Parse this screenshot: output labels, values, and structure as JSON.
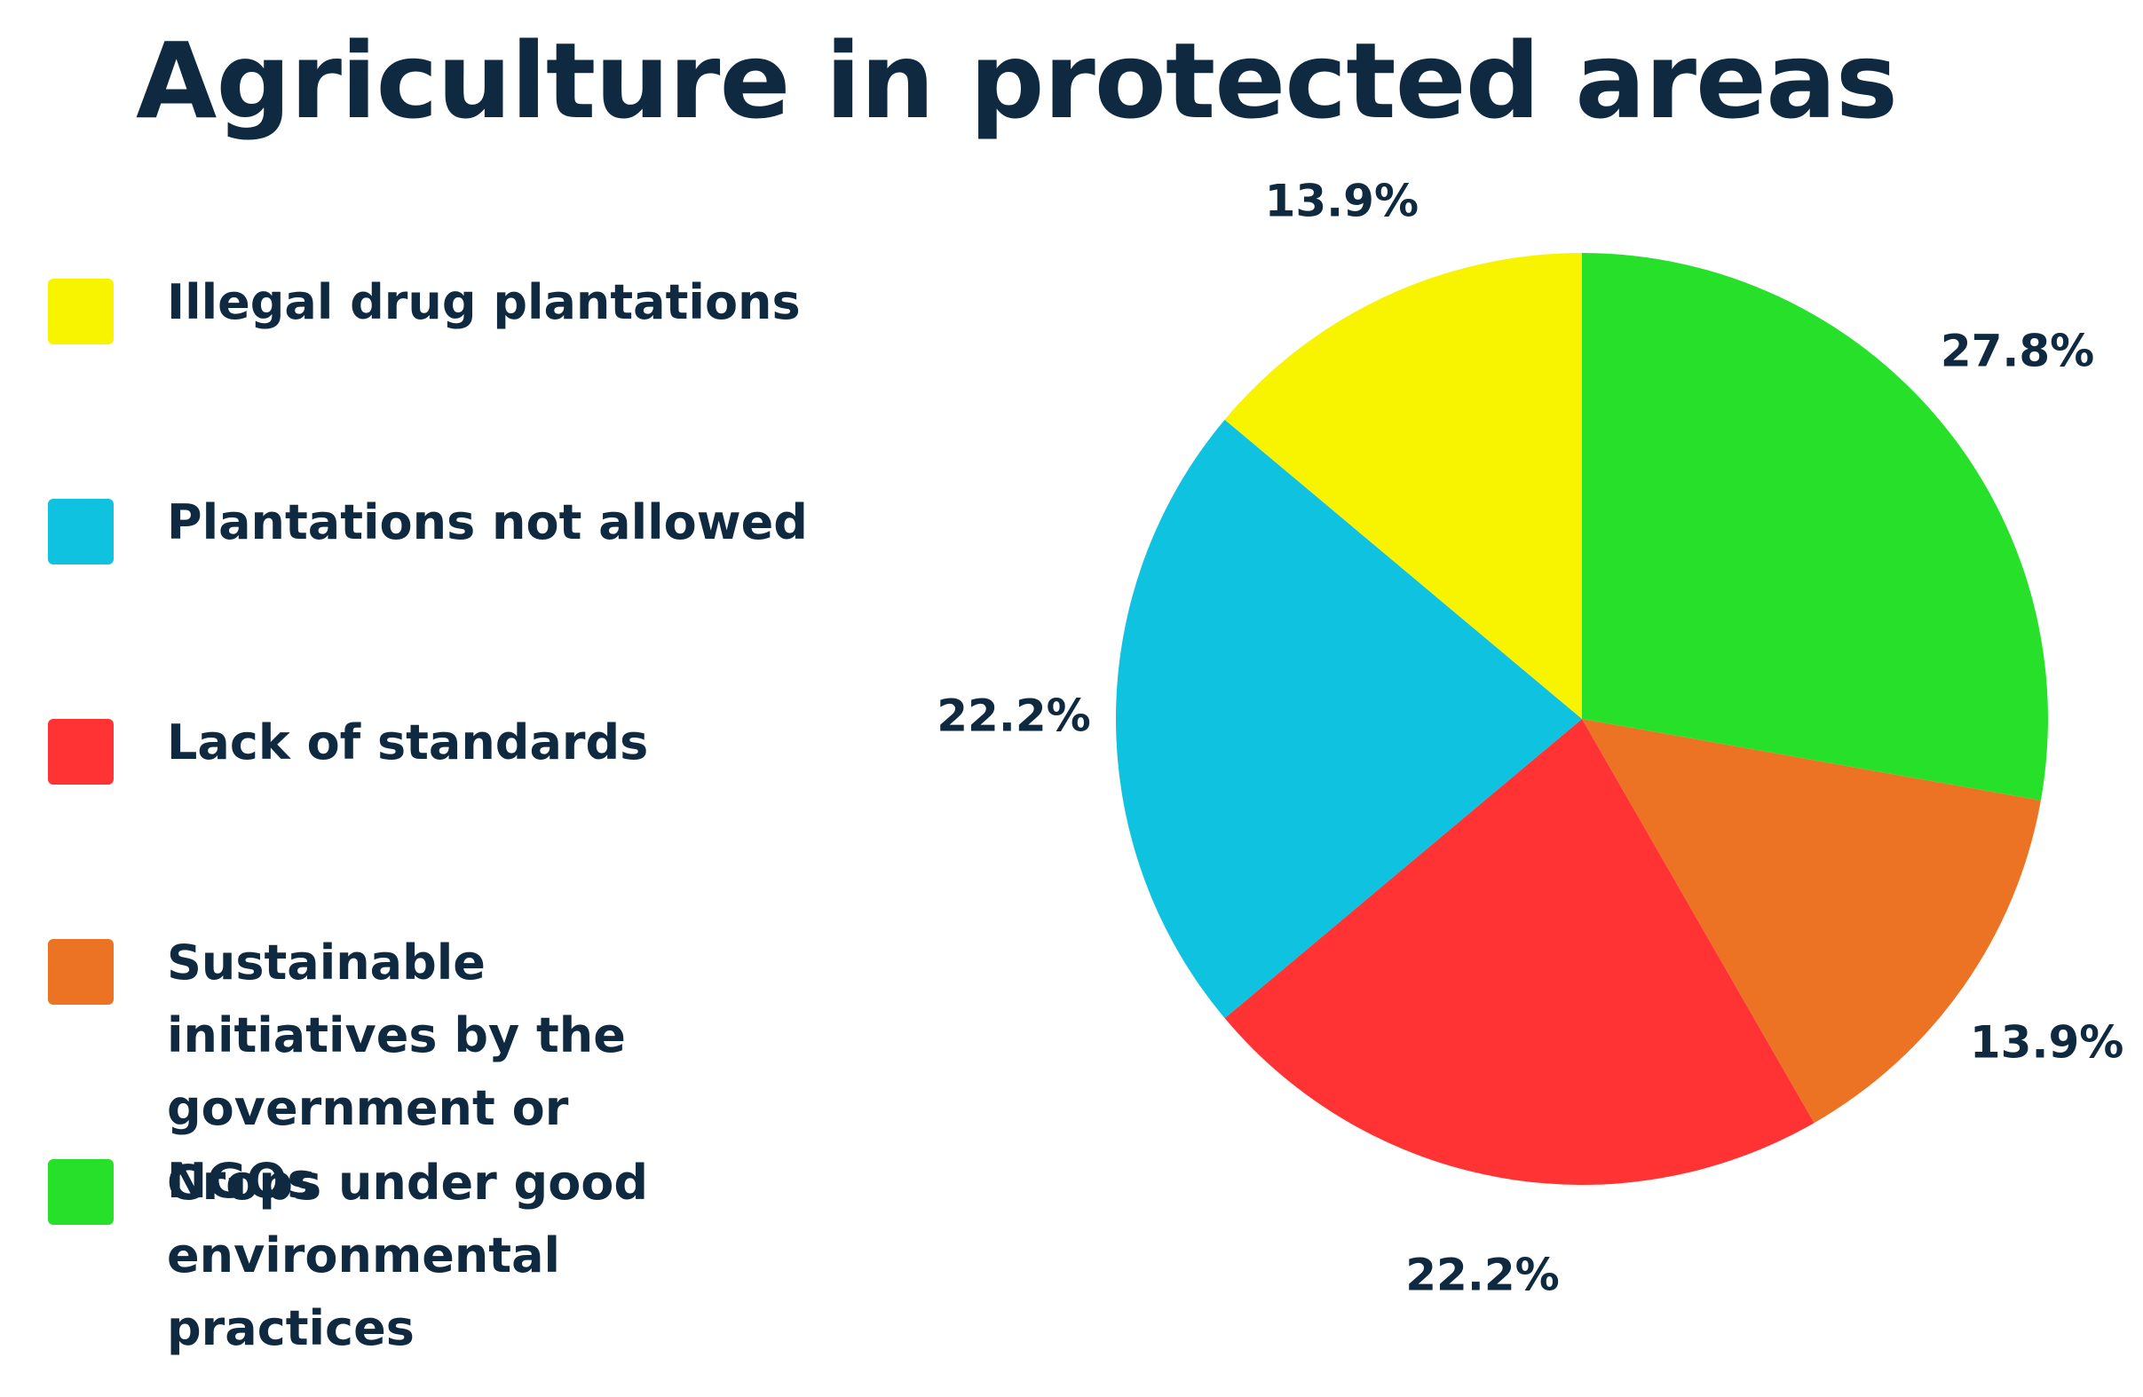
{
  "chart_data": {
    "type": "pie",
    "title": "Agriculture in protected areas",
    "legend_position": "left",
    "slices": [
      {
        "label": "Crops under good environmental practices",
        "value": 27.8,
        "value_label": "27.8%",
        "color": "#26e02a"
      },
      {
        "label": "Sustainable initiatives by the government or NGOs",
        "value": 13.9,
        "value_label": "13.9%",
        "color": "#ec7324"
      },
      {
        "label": "Lack of standards",
        "value": 22.2,
        "value_label": "22.2%",
        "color": "#ff3333"
      },
      {
        "label": "Plantations not allowed",
        "value": 22.2,
        "value_label": "22.2%",
        "color": "#0ec2e0"
      },
      {
        "label": "Illegal drug plantations",
        "value": 13.9,
        "value_label": "13.9%",
        "color": "#f8f400"
      }
    ],
    "legend": [
      {
        "label": "Illegal drug plantations",
        "color": "#f8f400"
      },
      {
        "label": "Plantations not allowed",
        "color": "#0ec2e0"
      },
      {
        "label": "Lack of standards",
        "color": "#ff3333"
      },
      {
        "label": "Sustainable initiatives by the government or NGOs",
        "color": "#ec7324"
      },
      {
        "label": "Crops under good environmental practices",
        "color": "#26e02a"
      }
    ]
  }
}
